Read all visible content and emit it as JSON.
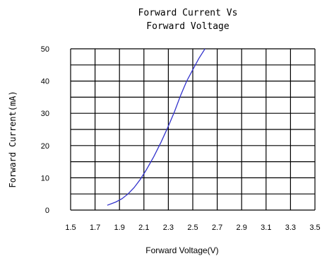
{
  "chart_data": {
    "type": "line",
    "title_lines": [
      "Forward Current Vs",
      "Forward Voltage"
    ],
    "xlabel": "Forward Voltage(V)",
    "ylabel": "Forward Current(mA)",
    "xlim": [
      1.5,
      3.5
    ],
    "ylim": [
      0,
      50
    ],
    "x_ticks": [
      "1.5",
      "1.7",
      "1.9",
      "2.1",
      "2.3",
      "2.5",
      "2.7",
      "2.9",
      "3.1",
      "3.3",
      "3.5"
    ],
    "y_ticks": [
      "0",
      "10",
      "20",
      "30",
      "40",
      "50"
    ],
    "grid": true,
    "line_color": "#3333cc",
    "series": [
      {
        "x": [
          1.8,
          1.87,
          1.92,
          1.97,
          2.02,
          2.07,
          2.12,
          2.18,
          2.24,
          2.3,
          2.35,
          2.4,
          2.45,
          2.5,
          2.55,
          2.6
        ],
        "y": [
          1.5,
          2.5,
          3.5,
          5.0,
          7.0,
          9.5,
          12.5,
          16.5,
          21.0,
          26.0,
          30.5,
          35.5,
          40.0,
          43.5,
          47.0,
          50.0
        ]
      }
    ]
  }
}
